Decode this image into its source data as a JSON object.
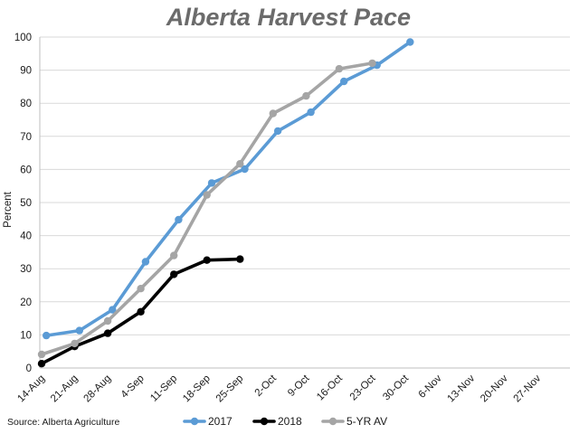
{
  "chart_data": {
    "type": "line",
    "title": "Alberta Harvest Pace",
    "xlabel": "",
    "ylabel": "Percent",
    "ylim": [
      0,
      100
    ],
    "yticks": [
      0,
      10,
      20,
      30,
      40,
      50,
      60,
      70,
      80,
      90,
      100
    ],
    "categories": [
      "14-Aug",
      "21-Aug",
      "28-Aug",
      "4-Sep",
      "11-Sep",
      "18-Sep",
      "25-Sep",
      "2-Oct",
      "9-Oct",
      "16-Oct",
      "23-Oct",
      "30-Oct",
      "6-Nov",
      "13-Nov",
      "20-Nov",
      "27-Nov"
    ],
    "grid": "horizontal",
    "legend_position": "bottom",
    "series": [
      {
        "name": "2017",
        "color": "#5b9bd5",
        "points": [
          {
            "x": "15-Aug",
            "y": 9.8
          },
          {
            "x": "22-Aug",
            "y": 11.3
          },
          {
            "x": "29-Aug",
            "y": 17.6
          },
          {
            "x": "5-Sep",
            "y": 32.1
          },
          {
            "x": "12-Sep",
            "y": 44.8
          },
          {
            "x": "19-Sep",
            "y": 55.9
          },
          {
            "x": "26-Sep",
            "y": 60.1
          },
          {
            "x": "3-Oct",
            "y": 71.6
          },
          {
            "x": "10-Oct",
            "y": 77.3
          },
          {
            "x": "17-Oct",
            "y": 86.6
          },
          {
            "x": "24-Oct",
            "y": 91.5
          },
          {
            "x": "31-Oct",
            "y": 98.5
          }
        ]
      },
      {
        "name": "2018",
        "color": "#000000",
        "points": [
          {
            "x": "14-Aug",
            "y": 1.3
          },
          {
            "x": "21-Aug",
            "y": 6.5
          },
          {
            "x": "28-Aug",
            "y": 10.5
          },
          {
            "x": "4-Sep",
            "y": 17.0
          },
          {
            "x": "11-Sep",
            "y": 28.3
          },
          {
            "x": "18-Sep",
            "y": 32.6
          },
          {
            "x": "25-Sep",
            "y": 32.9
          }
        ]
      },
      {
        "name": "5-YR AV",
        "color": "#a5a5a5",
        "points": [
          {
            "x": "14-Aug",
            "y": 4.1
          },
          {
            "x": "21-Aug",
            "y": 7.4
          },
          {
            "x": "28-Aug",
            "y": 14.2
          },
          {
            "x": "4-Sep",
            "y": 24.0
          },
          {
            "x": "11-Sep",
            "y": 34.0
          },
          {
            "x": "18-Sep",
            "y": 52.3
          },
          {
            "x": "25-Sep",
            "y": 61.7
          },
          {
            "x": "2-Oct",
            "y": 76.9
          },
          {
            "x": "9-Oct",
            "y": 82.2
          },
          {
            "x": "16-Oct",
            "y": 90.4
          },
          {
            "x": "23-Oct",
            "y": 92.1
          }
        ]
      }
    ]
  },
  "footer": {
    "source": "Source: Alberta Agriculture"
  }
}
